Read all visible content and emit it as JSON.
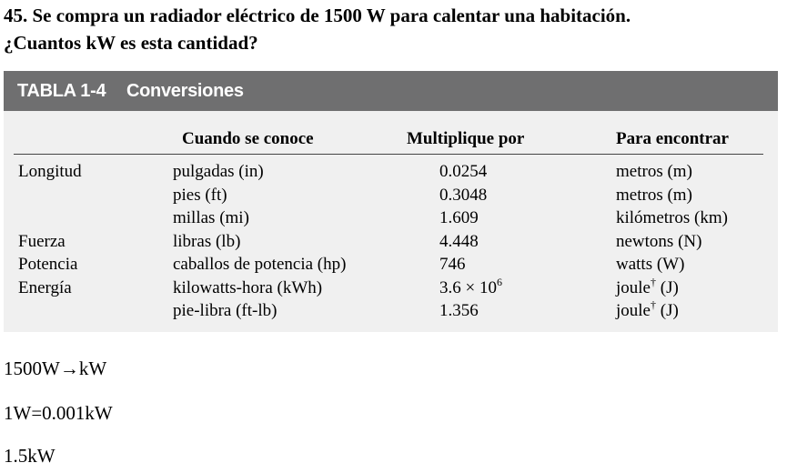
{
  "question": {
    "line1": "45. Se compra un radiador eléctrico de 1500 W para calentar una habitación.",
    "line2": "¿Cuantos kW es esta cantidad?"
  },
  "table": {
    "number": "TABLA 1-4",
    "title": "Conversiones",
    "headers": [
      "Cuando se conoce",
      "Multiplique por",
      "Para encontrar"
    ],
    "rows": [
      {
        "category": "Longitud",
        "known": "pulgadas (in)",
        "factor": "0.0254",
        "find": "metros (m)"
      },
      {
        "category": "",
        "known": "pies (ft)",
        "factor": "0.3048",
        "find": "metros (m)"
      },
      {
        "category": "",
        "known": "millas (mi)",
        "factor": "1.609",
        "find": "kilómetros (km)"
      },
      {
        "category": "Fuerza",
        "known": "libras (lb)",
        "factor": "4.448",
        "find": "newtons (N)"
      },
      {
        "category": "Potencia",
        "known": "caballos de potencia (hp)",
        "factor": "746",
        "find": "watts (W)"
      },
      {
        "category": "Energía",
        "known": "kilowatts-hora (kWh)",
        "factor": "3.6 × 10",
        "factor_exp": "6",
        "find": "joule",
        "find_mark": "†",
        "find_unit": " (J)"
      },
      {
        "category": "",
        "known": "pie-libra (ft-lb)",
        "factor": "1.356",
        "find": "joule",
        "find_mark": "†",
        "find_unit": " (J)"
      }
    ]
  },
  "answer": {
    "line1": "1500W→kW",
    "line2": "1W=0.001kW",
    "line3": "1.5kW"
  }
}
